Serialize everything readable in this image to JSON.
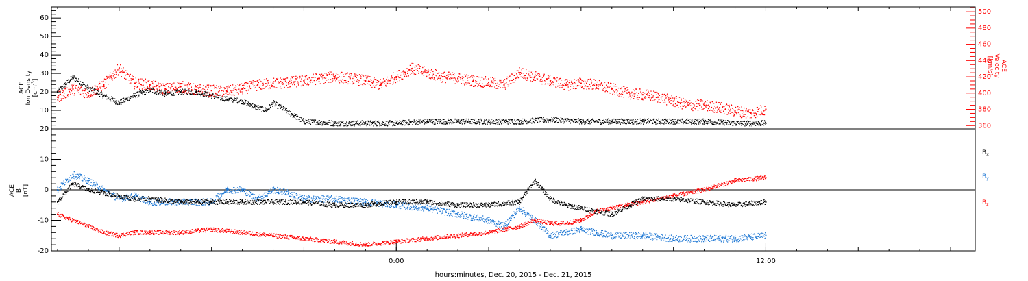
{
  "xlabel": "hours:minutes, Dec. 20, 2015 - Dec. 21, 2015",
  "x_tick_labels": [
    {
      "t": 0,
      "label": "0:00"
    },
    {
      "t": 12,
      "label": "12:00"
    }
  ],
  "x_range_hours": [
    -11.2,
    18.8
  ],
  "colors": {
    "black": "#000000",
    "red": "#ff0000",
    "blue": "#1f78d4"
  },
  "panel_top": {
    "left_label_lines": [
      "ACE",
      "Ion Density"
    ],
    "left_unit": "[cm",
    "left_unit_sup": "-3",
    "left_unit_close": "]",
    "right_label_lines": [
      "ACE",
      "Velocity",
      "[km/s]"
    ],
    "left_ticks": [
      "0",
      "10",
      "20",
      "30",
      "40",
      "50",
      "60"
    ],
    "right_ticks": [
      "360",
      "380",
      "400",
      "420",
      "440",
      "460",
      "480",
      "500"
    ]
  },
  "panel_bottom": {
    "left_label_lines": [
      "ACE",
      "B",
      "[nT]"
    ],
    "ticks": [
      "-20",
      "-10",
      "0",
      "10",
      "20"
    ],
    "legend": [
      {
        "base": "B",
        "sub": "x",
        "color": "#000000"
      },
      {
        "base": "B",
        "sub": "y",
        "color": "#1f78d4"
      },
      {
        "base": "B",
        "sub": "z",
        "color": "#ff0000"
      }
    ]
  },
  "chart_data": [
    {
      "type": "scatter",
      "panel": "top",
      "ylim_left": [
        0,
        66
      ],
      "ylim_right": [
        356,
        506
      ],
      "series": [
        {
          "key": "density",
          "axis": "left",
          "color": "#000000",
          "x": [
            -11,
            -10.5,
            -10,
            -9.5,
            -9,
            -8.5,
            -8,
            -7.5,
            -7,
            -6.5,
            -6,
            -5.5,
            -5,
            -4.6,
            -4.2,
            -4,
            -3,
            -2,
            -1,
            0,
            1,
            2,
            3,
            4,
            5,
            6,
            7,
            8,
            9,
            10,
            11,
            12
          ],
          "y": [
            20,
            28,
            22,
            18,
            14,
            18,
            21,
            19,
            20,
            20,
            18,
            16,
            15,
            12,
            10,
            14,
            4,
            3,
            3,
            3,
            4,
            4,
            4,
            4,
            5,
            4,
            4,
            4,
            4,
            4,
            3,
            3
          ]
        },
        {
          "key": "velocity",
          "axis": "right",
          "color": "#ff0000",
          "x": [
            -11,
            -10.5,
            -10,
            -9.5,
            -9,
            -8.5,
            -8,
            -7.5,
            -7,
            -6.5,
            -6,
            -5.5,
            -5,
            -4.5,
            -4,
            -3.5,
            -3,
            -2.5,
            -2,
            -1.5,
            -1,
            -0.5,
            0,
            0.5,
            1,
            1.5,
            2,
            2.5,
            3,
            3.5,
            4,
            4.5,
            5,
            5.5,
            6,
            6.5,
            7,
            7.5,
            8,
            8.5,
            9,
            9.5,
            10,
            10.5,
            11,
            11.5,
            12
          ],
          "y": [
            395,
            405,
            400,
            410,
            430,
            412,
            410,
            405,
            408,
            404,
            403,
            402,
            405,
            410,
            412,
            413,
            415,
            418,
            420,
            418,
            415,
            410,
            420,
            430,
            425,
            420,
            418,
            415,
            413,
            410,
            425,
            420,
            415,
            410,
            412,
            410,
            405,
            400,
            398,
            395,
            390,
            385,
            385,
            382,
            378,
            375,
            380
          ]
        }
      ]
    },
    {
      "type": "scatter",
      "panel": "bottom",
      "ylim": [
        -20,
        20
      ],
      "series": [
        {
          "key": "Bx",
          "name": "Bx",
          "color": "#000000",
          "x": [
            -11,
            -10.5,
            -10,
            -9.5,
            -9,
            -8.5,
            -8,
            -7,
            -6,
            -5,
            -4,
            -3,
            -2,
            -1,
            0,
            1,
            2,
            3,
            4,
            4.5,
            5,
            5.5,
            6,
            6.5,
            7,
            8,
            9,
            10,
            11,
            12
          ],
          "y": [
            -4,
            2,
            0,
            -1,
            -2,
            -3,
            -3,
            -4,
            -4,
            -4,
            -4,
            -4,
            -5,
            -5,
            -4,
            -4,
            -5,
            -5,
            -4,
            3,
            -3,
            -5,
            -6,
            -7,
            -8,
            -3,
            -3,
            -4,
            -5,
            -4
          ]
        },
        {
          "key": "By",
          "name": "By",
          "color": "#1f78d4",
          "x": [
            -11,
            -10.5,
            -10,
            -9.5,
            -9,
            -8.5,
            -8,
            -7,
            -6,
            -5.5,
            -5,
            -4.5,
            -4,
            -3.5,
            -3,
            -2,
            -1,
            0,
            1,
            2,
            3,
            3.5,
            4,
            4.5,
            5,
            5.5,
            6,
            6.5,
            7,
            8,
            9,
            10,
            11,
            12
          ],
          "y": [
            0,
            5,
            3,
            0,
            -3,
            -2,
            -4,
            -4,
            -4,
            0,
            0,
            -3,
            0,
            -1,
            -3,
            -3,
            -4,
            -5,
            -6,
            -8,
            -10,
            -12,
            -6,
            -10,
            -15,
            -14,
            -13,
            -14,
            -15,
            -15,
            -16,
            -16,
            -16,
            -15
          ]
        },
        {
          "key": "Bz",
          "name": "Bz",
          "color": "#ff0000",
          "x": [
            -11,
            -10.5,
            -10,
            -9.5,
            -9,
            -8.5,
            -8,
            -7,
            -6,
            -5,
            -4,
            -3,
            -2,
            -1,
            0,
            1,
            2,
            3,
            4,
            4.5,
            5,
            5.5,
            6,
            6.5,
            7,
            7.5,
            8,
            9,
            10,
            11,
            12
          ],
          "y": [
            -8,
            -10,
            -12,
            -14,
            -15,
            -14,
            -14,
            -14,
            -13,
            -14,
            -15,
            -16,
            -17,
            -18,
            -17,
            -16,
            -15,
            -14,
            -12,
            -10,
            -11,
            -11,
            -10,
            -7,
            -6,
            -5,
            -4,
            -2,
            0,
            3,
            4
          ]
        }
      ]
    }
  ]
}
